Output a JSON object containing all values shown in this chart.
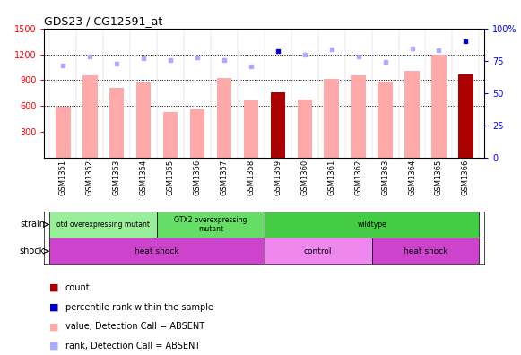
{
  "title": "GDS23 / CG12591_at",
  "samples": [
    "GSM1351",
    "GSM1352",
    "GSM1353",
    "GSM1354",
    "GSM1355",
    "GSM1356",
    "GSM1357",
    "GSM1358",
    "GSM1359",
    "GSM1360",
    "GSM1361",
    "GSM1362",
    "GSM1363",
    "GSM1364",
    "GSM1365",
    "GSM1366"
  ],
  "bar_values": [
    590,
    960,
    810,
    870,
    530,
    560,
    930,
    670,
    760,
    680,
    920,
    960,
    880,
    1010,
    1200,
    970
  ],
  "bar_colors": [
    "#ffaaaa",
    "#ffaaaa",
    "#ffaaaa",
    "#ffaaaa",
    "#ffaaaa",
    "#ffaaaa",
    "#ffaaaa",
    "#ffaaaa",
    "#aa0000",
    "#ffaaaa",
    "#ffaaaa",
    "#ffaaaa",
    "#ffaaaa",
    "#ffaaaa",
    "#ffaaaa",
    "#aa0000"
  ],
  "rank_values": [
    1070,
    1180,
    1090,
    1150,
    1130,
    1160,
    1130,
    1060,
    1240,
    1200,
    1260,
    1170,
    1110,
    1270,
    1250,
    1350
  ],
  "rank_colors": [
    "#aaaaff",
    "#aaaaff",
    "#aaaaff",
    "#aaaaff",
    "#aaaaff",
    "#aaaaff",
    "#aaaaff",
    "#aaaaff",
    "#0000cc",
    "#aaaaff",
    "#aaaaff",
    "#aaaaff",
    "#aaaaff",
    "#aaaaff",
    "#aaaaff",
    "#0000cc"
  ],
  "ylim_left": [
    0,
    1500
  ],
  "ylim_right": [
    0,
    100
  ],
  "yticks_left": [
    300,
    600,
    900,
    1200,
    1500
  ],
  "yticks_right": [
    0,
    25,
    50,
    75,
    100
  ],
  "right_tick_labels": [
    "0",
    "25",
    "50",
    "75",
    "100%"
  ],
  "grid_values": [
    600,
    900,
    1200
  ],
  "strain_groups": [
    {
      "label": "otd overexpressing mutant",
      "start": 0,
      "end": 4,
      "color": "#99ee99"
    },
    {
      "label": "OTX2 overexpressing\nmutant",
      "start": 4,
      "end": 8,
      "color": "#66dd66"
    },
    {
      "label": "wildtype",
      "start": 8,
      "end": 16,
      "color": "#44cc44"
    }
  ],
  "shock_groups": [
    {
      "label": "heat shock",
      "start": 0,
      "end": 8,
      "color": "#cc44cc"
    },
    {
      "label": "control",
      "start": 8,
      "end": 12,
      "color": "#ee88ee"
    },
    {
      "label": "heat shock",
      "start": 12,
      "end": 16,
      "color": "#cc44cc"
    }
  ],
  "legend_items": [
    {
      "label": "count",
      "color": "#aa0000"
    },
    {
      "label": "percentile rank within the sample",
      "color": "#0000cc"
    },
    {
      "label": "value, Detection Call = ABSENT",
      "color": "#ffaaaa"
    },
    {
      "label": "rank, Detection Call = ABSENT",
      "color": "#aaaaff"
    }
  ],
  "bar_width": 0.55,
  "background_color": "#ffffff"
}
